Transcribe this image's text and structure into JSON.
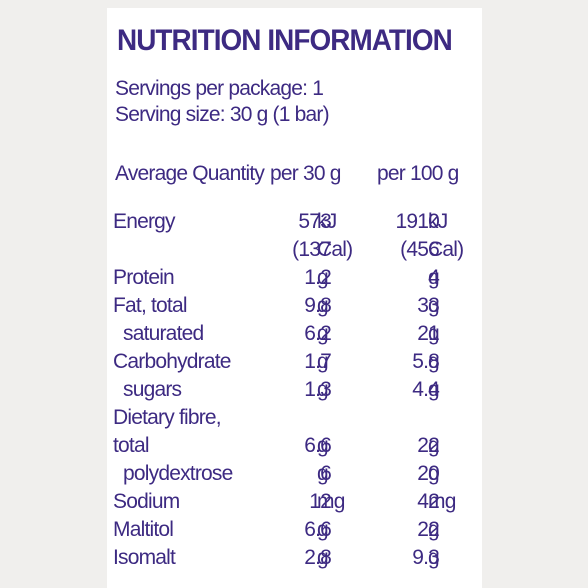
{
  "title": "NUTRITION INFORMATION",
  "servings_per_package": "Servings per package: 1",
  "serving_size": "Serving size: 30 g (1 bar)",
  "header": {
    "col0": "Average Quantity",
    "col1": "per 30 g",
    "col2": "per 100 g"
  },
  "rows": [
    {
      "label": "Energy",
      "v1": "573",
      "u1": "kJ",
      "v2": "1910",
      "u2": "kJ"
    },
    {
      "label": "",
      "v1": "(137",
      "u1": "Cal)",
      "v2": "(456",
      "u2": "Cal)"
    },
    {
      "label": "Protein",
      "v1": "1.2",
      "u1": "g",
      "v2": "4",
      "u2": "g"
    },
    {
      "label": "Fat, total",
      "v1": "9.8",
      "u1": "g",
      "v2": "33",
      "u2": "g"
    },
    {
      "label": "saturated",
      "v1": "6.2",
      "u1": "g",
      "v2": "21",
      "u2": "g"
    },
    {
      "label": "Carbohydrate",
      "v1": "1.7",
      "u1": "g",
      "v2": "5.8",
      "u2": "g"
    },
    {
      "label": "sugars",
      "v1": "1.3",
      "u1": "g",
      "v2": "4.4",
      "u2": "g"
    },
    {
      "label": "Dietary fibre,",
      "v1": "",
      "u1": "",
      "v2": "",
      "u2": ""
    },
    {
      "label": "total",
      "v1": "6.6",
      "u1": "g",
      "v2": "22",
      "u2": "g"
    },
    {
      "label": "polydextrose",
      "v1": "6",
      "u1": "g",
      "v2": "20",
      "u2": "g"
    },
    {
      "label": "Sodium",
      "v1": "12",
      "u1": "mg",
      "v2": "42",
      "u2": "mg"
    },
    {
      "label": "Maltitol",
      "v1": "6.6",
      "u1": "g",
      "v2": "22",
      "u2": "g"
    },
    {
      "label": "Isomalt",
      "v1": "2.8",
      "u1": "g",
      "v2": "9.3",
      "u2": "g"
    }
  ],
  "colors": {
    "text": "#3d2a82",
    "panel": "#ffffff",
    "background": "#f0efed"
  }
}
